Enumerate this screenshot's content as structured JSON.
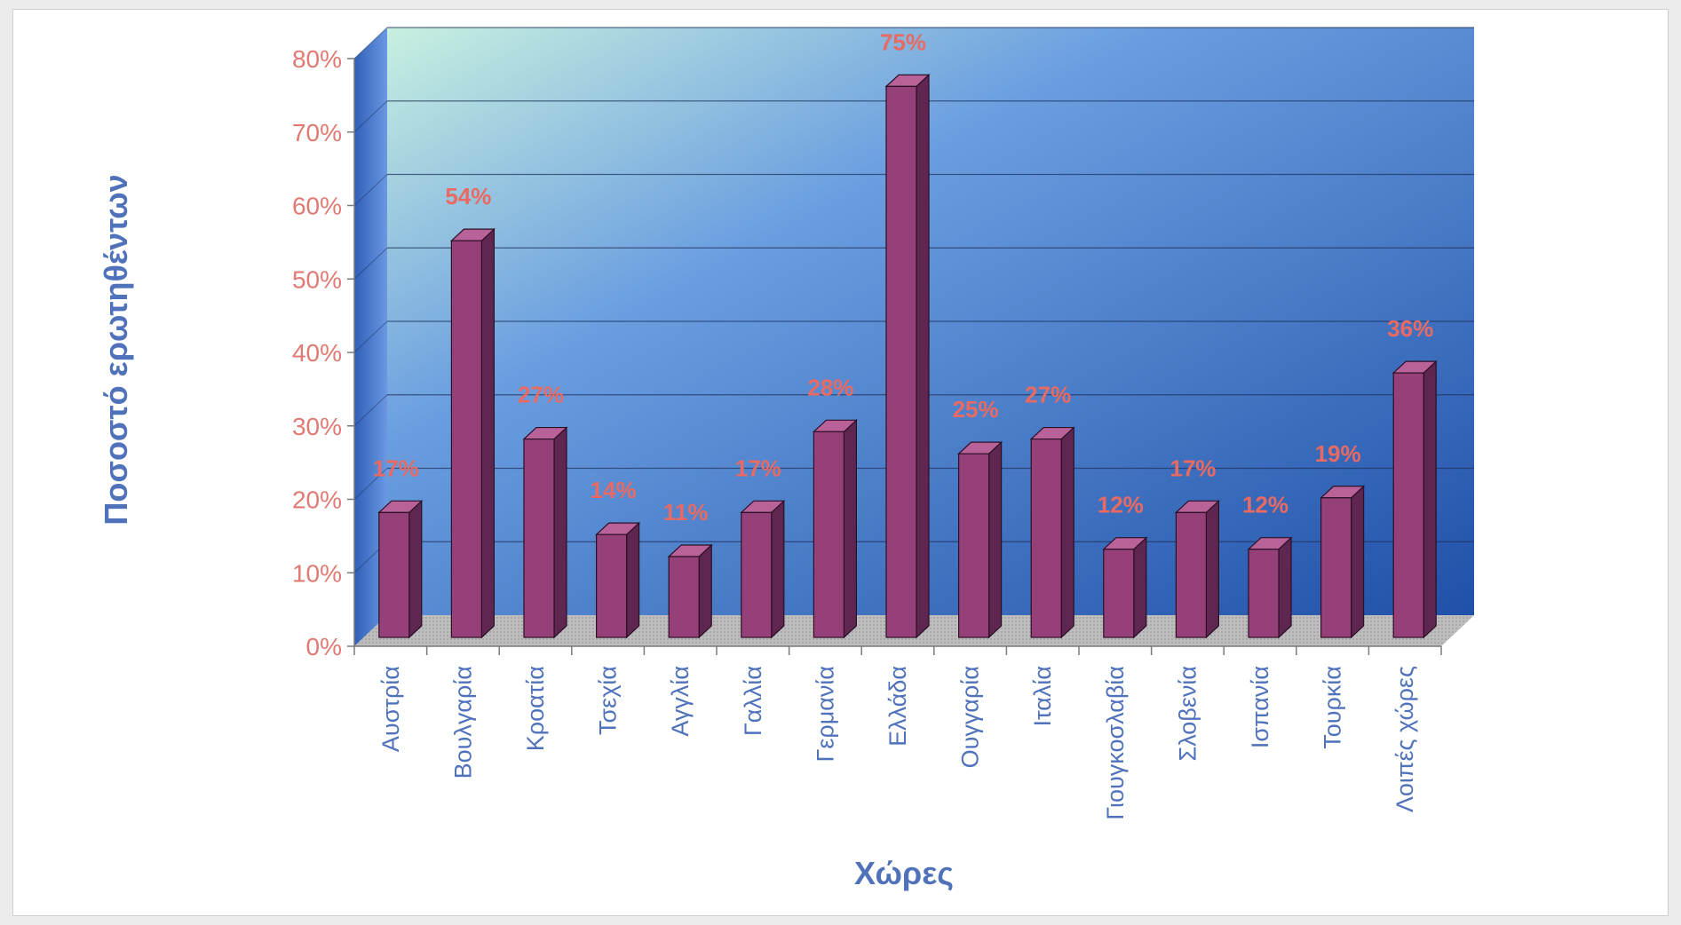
{
  "chart_data": {
    "type": "bar",
    "style": "3d-column",
    "categories": [
      "Αυστρία",
      "Βουλγαρία",
      "Κροατία",
      "Τσεχία",
      "Αγγλία",
      "Γαλλία",
      "Γερμανία",
      "Ελλάδα",
      "Ουγγαρία",
      "Ιταλία",
      "Γιουγκοσλαβία",
      "Σλοβενία",
      "Ισπανία",
      "Τουρκία",
      "Λοιπές χώρες"
    ],
    "values": [
      17,
      54,
      27,
      14,
      11,
      17,
      28,
      75,
      25,
      27,
      12,
      17,
      12,
      19,
      36
    ],
    "data_labels": [
      "17%",
      "54%",
      "27%",
      "14%",
      "11%",
      "17%",
      "28%",
      "75%",
      "25%",
      "27%",
      "12%",
      "17%",
      "12%",
      "19%",
      "36%"
    ],
    "ylabel": "Ποσοστό ερωτηθέντων",
    "xlabel": "Χώρες",
    "ylim": [
      0,
      80
    ],
    "yticks": [
      "0%",
      "10%",
      "20%",
      "30%",
      "40%",
      "50%",
      "60%",
      "70%",
      "80%"
    ],
    "grid": true,
    "legend": "none",
    "colors": {
      "bar": "#96407a",
      "bar_side": "#5e2650",
      "bar_top": "#b86299",
      "back_wall_top_left": "#c8f0e0",
      "back_wall_bottom_right": "#2050a8",
      "side_wall": "#4a7ad0",
      "floor": "#b8b8b8",
      "tick_labels": "#e07a72",
      "category_labels": "#4f72bb",
      "axis_titles": "#4f72bb",
      "data_labels": "#e86a62"
    }
  }
}
